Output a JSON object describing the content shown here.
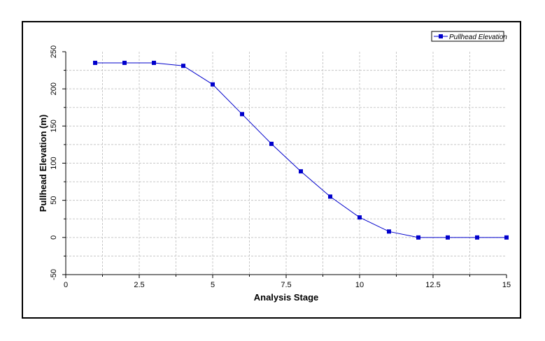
{
  "chart_data": {
    "type": "line",
    "title": "",
    "xlabel": "Analysis Stage",
    "ylabel": "Pullhead Elevation (m)",
    "xlim": [
      0,
      15
    ],
    "ylim": [
      -50,
      250
    ],
    "x_ticks": [
      0,
      2.5,
      5,
      7.5,
      10,
      12.5,
      15
    ],
    "x_tick_labels": [
      "0",
      "2.5",
      "5",
      "7.5",
      "10",
      "12.5",
      "15"
    ],
    "y_ticks": [
      -50,
      0,
      50,
      100,
      150,
      200,
      250
    ],
    "y_tick_labels": [
      "-50",
      "0",
      "50",
      "100",
      "150",
      "200",
      "250"
    ],
    "grid": true,
    "legend_position": "top-right",
    "series": [
      {
        "name": "Pullhead Elevation",
        "color": "#0000cc",
        "marker": "square",
        "x": [
          1,
          2,
          3,
          4,
          5,
          6,
          7,
          8,
          9,
          10,
          11,
          12,
          13,
          14,
          15
        ],
        "y": [
          235,
          235,
          235,
          231,
          206,
          166,
          126,
          89,
          55,
          27,
          8,
          0,
          0,
          0,
          0
        ]
      }
    ]
  }
}
